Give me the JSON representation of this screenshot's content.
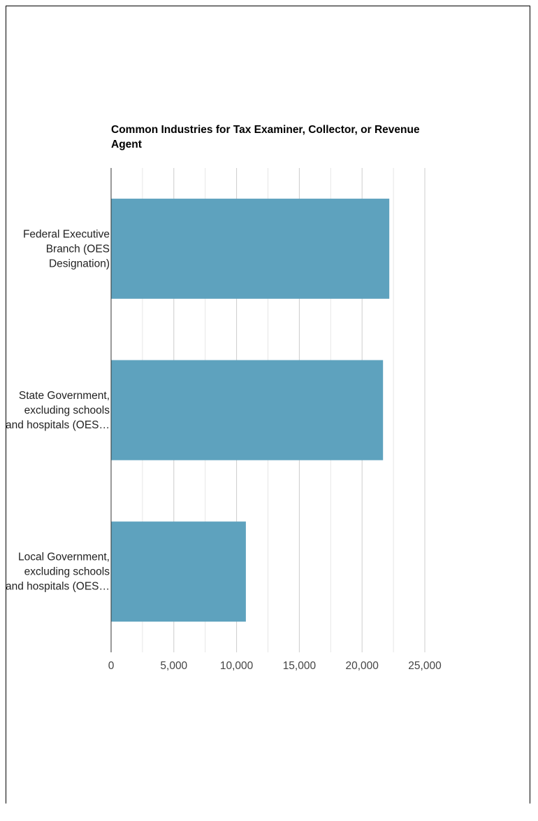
{
  "chart_data": {
    "type": "bar",
    "orientation": "horizontal",
    "title": "Common Industries for Tax Examiner, Collector, or Revenue Agent",
    "categories": [
      [
        "Federal Executive",
        "Branch (OES",
        "Designation)"
      ],
      [
        "State Government,",
        "excluding schools",
        "and hospitals (OES…"
      ],
      [
        "Local Government,",
        "excluding schools",
        "and hospitals (OES…"
      ]
    ],
    "values": [
      22170,
      21670,
      10740
    ],
    "xlim": [
      0,
      25000
    ],
    "major_ticks": [
      0,
      5000,
      10000,
      15000,
      20000,
      25000
    ],
    "tick_labels": [
      "0",
      "5,000",
      "10,000",
      "15,000",
      "20,000",
      "25,000"
    ],
    "minor_gridlines": [
      2500,
      7500,
      12500,
      17500,
      22500
    ],
    "grid": true,
    "legend": "none",
    "bar_color": "#5ea2be",
    "gridline_color": "#cccccc",
    "minor_gridline_color": "#e6e6e6",
    "axis_color": "#333333"
  }
}
